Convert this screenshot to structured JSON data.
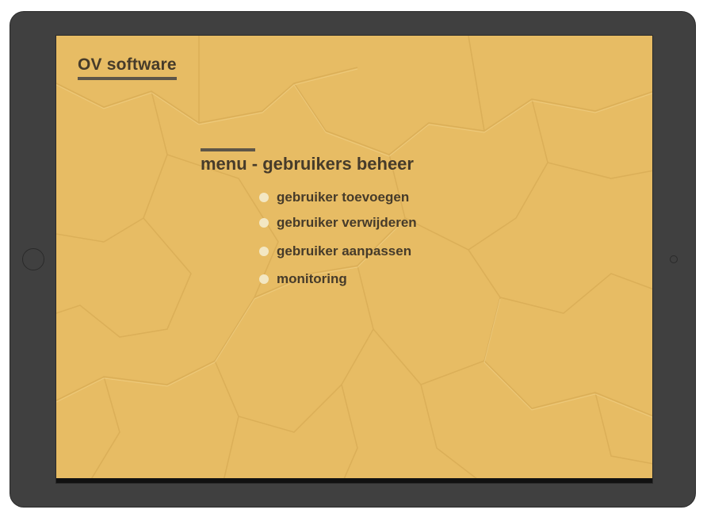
{
  "app": {
    "title": "OV software"
  },
  "menu": {
    "title": "menu - gebruikers beheer",
    "items": [
      {
        "label": "gebruiker toevoegen"
      },
      {
        "label": "gebruiker verwijderen"
      },
      {
        "label": "gebruiker aanpassen"
      },
      {
        "label": "monitoring"
      }
    ]
  },
  "colors": {
    "background": "#e7bc64",
    "text": "#463b2a",
    "accent": "#5e5648",
    "bullet": "#f3e7c3",
    "frame": "#404040"
  }
}
